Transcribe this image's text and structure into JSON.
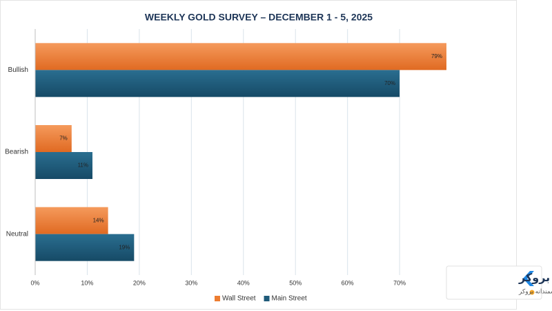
{
  "chart_data": {
    "type": "hbar",
    "title": "WEEKLY GOLD SURVEY – DECEMBER 1 - 5, 2025",
    "categories": [
      "Bullish",
      "Bearish",
      "Neutral"
    ],
    "series": [
      {
        "name": "Wall Street",
        "color": "#ed7d31",
        "values": [
          79,
          7,
          14
        ],
        "value_labels": [
          "79%",
          "7%",
          "14%"
        ]
      },
      {
        "name": "Main Street",
        "color": "#1f5b7a",
        "values": [
          70,
          11,
          19
        ],
        "value_labels": [
          "70%",
          "11%",
          "19%"
        ]
      }
    ],
    "xlim": [
      0,
      90
    ],
    "xticks": [
      {
        "value": 0,
        "label": "0%"
      },
      {
        "value": 10,
        "label": "10%"
      },
      {
        "value": 20,
        "label": "20%"
      },
      {
        "value": 30,
        "label": "30%"
      },
      {
        "value": 40,
        "label": "40%"
      },
      {
        "value": 50,
        "label": "50%"
      },
      {
        "value": 60,
        "label": "60%"
      },
      {
        "value": 70,
        "label": "70%"
      }
    ],
    "grid": true,
    "legend": "bottom",
    "logo_text": "کدام بروکر",
    "logo_subtitle": "انتخاب هوشمندانه بروکر"
  }
}
